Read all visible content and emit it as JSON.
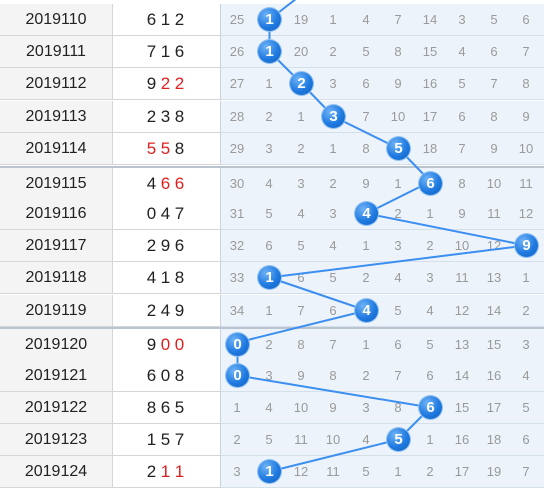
{
  "rows": [
    {
      "period": "2019110",
      "draw": [
        "6",
        "1",
        "2"
      ],
      "dup": [],
      "hit_label": "1",
      "cells": [
        "25",
        "1",
        "19",
        "1",
        "4",
        "7",
        "14",
        "3",
        "5",
        "6"
      ]
    },
    {
      "period": "2019111",
      "draw": [
        "7",
        "1",
        "6"
      ],
      "dup": [],
      "hit_label": "1",
      "cells": [
        "26",
        "1",
        "20",
        "2",
        "5",
        "8",
        "15",
        "4",
        "6",
        "7"
      ]
    },
    {
      "period": "2019112",
      "draw": [
        "9",
        "2",
        "2"
      ],
      "dup": [
        1,
        2
      ],
      "hit_label": "2",
      "cells": [
        "27",
        "1",
        "2",
        "3",
        "6",
        "9",
        "16",
        "5",
        "7",
        "8"
      ]
    },
    {
      "period": "2019113",
      "draw": [
        "2",
        "3",
        "8"
      ],
      "dup": [],
      "hit_label": "3",
      "cells": [
        "28",
        "2",
        "1",
        "3",
        "7",
        "10",
        "17",
        "6",
        "8",
        "9"
      ]
    },
    {
      "period": "2019114",
      "draw": [
        "5",
        "5",
        "8"
      ],
      "dup": [
        0,
        1
      ],
      "hit_label": "5",
      "cells": [
        "29",
        "3",
        "2",
        "1",
        "8",
        "5",
        "18",
        "7",
        "9",
        "10"
      ]
    },
    {
      "period": "2019115",
      "draw": [
        "4",
        "6",
        "6"
      ],
      "dup": [
        1,
        2
      ],
      "hit_label": "6",
      "cells": [
        "30",
        "4",
        "3",
        "2",
        "9",
        "1",
        "6",
        "8",
        "10",
        "11"
      ]
    },
    {
      "period": "2019116",
      "draw": [
        "0",
        "4",
        "7"
      ],
      "dup": [],
      "hit_label": "4",
      "cells": [
        "31",
        "5",
        "4",
        "3",
        "4",
        "2",
        "1",
        "9",
        "11",
        "12"
      ]
    },
    {
      "period": "2019117",
      "draw": [
        "2",
        "9",
        "6"
      ],
      "dup": [],
      "hit_label": "9",
      "cells": [
        "32",
        "6",
        "5",
        "4",
        "1",
        "3",
        "2",
        "10",
        "12",
        "9"
      ]
    },
    {
      "period": "2019118",
      "draw": [
        "4",
        "1",
        "8"
      ],
      "dup": [],
      "hit_label": "1",
      "cells": [
        "33",
        "1",
        "6",
        "5",
        "2",
        "4",
        "3",
        "11",
        "13",
        "1"
      ]
    },
    {
      "period": "2019119",
      "draw": [
        "2",
        "4",
        "9"
      ],
      "dup": [],
      "hit_label": "4",
      "cells": [
        "34",
        "1",
        "7",
        "6",
        "4",
        "5",
        "4",
        "12",
        "14",
        "2"
      ]
    },
    {
      "period": "2019120",
      "draw": [
        "9",
        "0",
        "0"
      ],
      "dup": [
        1,
        2
      ],
      "hit_label": "0",
      "cells": [
        "0",
        "2",
        "8",
        "7",
        "1",
        "6",
        "5",
        "13",
        "15",
        "3"
      ]
    },
    {
      "period": "2019121",
      "draw": [
        "6",
        "0",
        "8"
      ],
      "dup": [],
      "hit_label": "0",
      "cells": [
        "0",
        "3",
        "9",
        "8",
        "2",
        "7",
        "6",
        "14",
        "16",
        "4"
      ]
    },
    {
      "period": "2019122",
      "draw": [
        "8",
        "6",
        "5"
      ],
      "dup": [],
      "hit_label": "6",
      "cells": [
        "1",
        "4",
        "10",
        "9",
        "3",
        "8",
        "6",
        "15",
        "17",
        "5"
      ]
    },
    {
      "period": "2019123",
      "draw": [
        "1",
        "5",
        "7"
      ],
      "dup": [],
      "hit_label": "5",
      "cells": [
        "2",
        "5",
        "11",
        "10",
        "4",
        "5",
        "1",
        "16",
        "18",
        "6"
      ]
    },
    {
      "period": "2019124",
      "draw": [
        "2",
        "1",
        "1"
      ],
      "dup": [
        1,
        2
      ],
      "hit_label": "1",
      "cells": [
        "3",
        "1",
        "12",
        "11",
        "5",
        "1",
        "2",
        "17",
        "19",
        "7"
      ]
    }
  ],
  "hit_columns": [
    1,
    1,
    2,
    3,
    5,
    6,
    4,
    9,
    1,
    4,
    0,
    0,
    6,
    5,
    1
  ],
  "colors": {
    "ball": "#1f7ae0",
    "line": "#3b8ff0",
    "grid_bg": "#edf3fa",
    "dup_digit": "#e02020"
  }
}
